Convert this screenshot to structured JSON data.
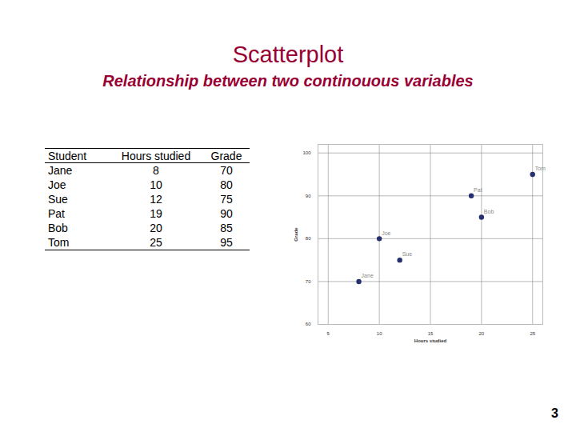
{
  "slide": {
    "title": "Scatterplot",
    "subtitle": "Relationship between two continouous variables",
    "page": 3
  },
  "table": {
    "columns": [
      "Student",
      "Hours studied",
      "Grade"
    ],
    "rows": [
      [
        "Jane",
        8,
        70
      ],
      [
        "Joe",
        10,
        80
      ],
      [
        "Sue",
        12,
        75
      ],
      [
        "Pat",
        19,
        90
      ],
      [
        "Bob",
        20,
        85
      ],
      [
        "Tom",
        25,
        95
      ]
    ]
  },
  "chart_data": {
    "type": "scatter",
    "x": [
      8,
      10,
      12,
      19,
      20,
      25
    ],
    "values": [
      70,
      80,
      75,
      90,
      85,
      95
    ],
    "point_labels": [
      "Jane",
      "Joe",
      "Sue",
      "Pat",
      "Bob",
      "Tom"
    ],
    "xlabel": "Hours studied",
    "ylabel": "Grade",
    "xlim": [
      4,
      26
    ],
    "xticks": [
      5,
      10,
      15,
      20,
      25
    ],
    "ylim": [
      60,
      102
    ],
    "yticks": [
      60,
      70,
      80,
      90,
      100
    ],
    "grid": true,
    "color": "#27306e",
    "marker": "circle"
  }
}
